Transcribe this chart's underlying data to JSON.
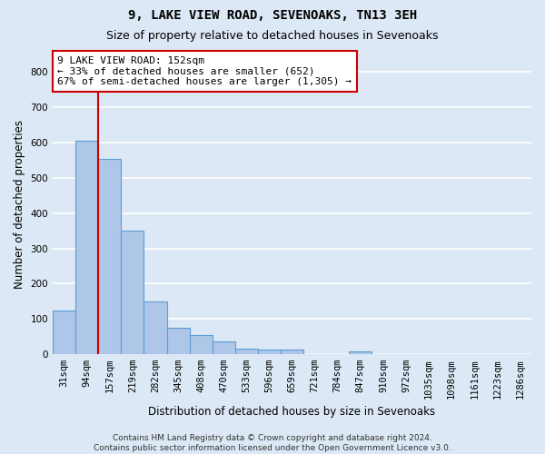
{
  "title1": "9, LAKE VIEW ROAD, SEVENOAKS, TN13 3EH",
  "title2": "Size of property relative to detached houses in Sevenoaks",
  "xlabel": "Distribution of detached houses by size in Sevenoaks",
  "ylabel": "Number of detached properties",
  "categories": [
    "31sqm",
    "94sqm",
    "157sqm",
    "219sqm",
    "282sqm",
    "345sqm",
    "408sqm",
    "470sqm",
    "533sqm",
    "596sqm",
    "659sqm",
    "721sqm",
    "784sqm",
    "847sqm",
    "910sqm",
    "972sqm",
    "1035sqm",
    "1098sqm",
    "1161sqm",
    "1223sqm",
    "1286sqm"
  ],
  "values": [
    125,
    605,
    555,
    350,
    150,
    75,
    55,
    35,
    15,
    13,
    13,
    0,
    0,
    8,
    0,
    0,
    0,
    0,
    0,
    0,
    0
  ],
  "bar_color": "#aec6e8",
  "bar_edge_color": "#5a9fd4",
  "annotation_text": "9 LAKE VIEW ROAD: 152sqm\n← 33% of detached houses are smaller (652)\n67% of semi-detached houses are larger (1,305) →",
  "annotation_box_color": "#ffffff",
  "annotation_box_edge_color": "#cc0000",
  "vline_color": "#cc0000",
  "footer_text": "Contains HM Land Registry data © Crown copyright and database right 2024.\nContains public sector information licensed under the Open Government Licence v3.0.",
  "ylim": [
    0,
    850
  ],
  "yticks": [
    0,
    100,
    200,
    300,
    400,
    500,
    600,
    700,
    800
  ],
  "background_color": "#dce8f5",
  "axes_background_color": "#dce8f5",
  "grid_color": "#ffffff",
  "title1_fontsize": 10,
  "title2_fontsize": 9,
  "tick_fontsize": 7.5,
  "ylabel_fontsize": 8.5,
  "xlabel_fontsize": 8.5,
  "annotation_fontsize": 8,
  "footer_fontsize": 6.5
}
